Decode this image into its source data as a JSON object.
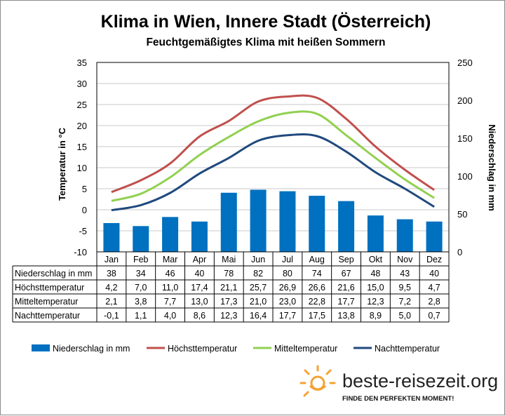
{
  "title": "Klima in Wien, Innere Stadt (Österreich)",
  "subtitle": "Feuchtgemäßigtes  Klima mit heißen  Sommern",
  "brand": {
    "name": "beste-reisezeit.org",
    "slogan": "FINDE DEN PERFEKTEN MOMENT!"
  },
  "colors": {
    "precip": "#0070c0",
    "high": "#c0504d",
    "mean": "#92d050",
    "low": "#1f497d"
  },
  "chart_data": {
    "type": "bar+line",
    "categories": [
      "Jan",
      "Feb",
      "Mar",
      "Apr",
      "Mai",
      "Jun",
      "Jul",
      "Aug",
      "Sep",
      "Okt",
      "Nov",
      "Dez"
    ],
    "ylabel": "Temperatur in °C",
    "y2label": "Niederschlag in mm",
    "ylim": [
      -10,
      35
    ],
    "yticks": [
      "35",
      "30",
      "25",
      "20",
      "15",
      "10",
      "5",
      "0",
      "-5",
      "-10"
    ],
    "y2lim": [
      0,
      250
    ],
    "y2ticks": [
      "250",
      "200",
      "150",
      "100",
      "50",
      "0"
    ],
    "grid": "horizontal",
    "legend_position": "bottom",
    "series": [
      {
        "name": "Niederschlag in mm",
        "kind": "bar",
        "axis": "right",
        "values": [
          38,
          34,
          46,
          40,
          78,
          82,
          80,
          74,
          67,
          48,
          43,
          40
        ],
        "display": [
          "38",
          "34",
          "46",
          "40",
          "78",
          "82",
          "80",
          "74",
          "67",
          "48",
          "43",
          "40"
        ]
      },
      {
        "name": "Höchsttemperatur",
        "kind": "line",
        "axis": "left",
        "values": [
          4.2,
          7.0,
          11.0,
          17.4,
          21.1,
          25.7,
          26.9,
          26.6,
          21.6,
          15.0,
          9.5,
          4.7
        ],
        "display": [
          "4,2",
          "7,0",
          "11,0",
          "17,4",
          "21,1",
          "25,7",
          "26,9",
          "26,6",
          "21,6",
          "15,0",
          "9,5",
          "4,7"
        ]
      },
      {
        "name": "Mitteltemperatur",
        "kind": "line",
        "axis": "left",
        "values": [
          2.1,
          3.8,
          7.7,
          13.0,
          17.3,
          21.0,
          23.0,
          22.8,
          17.7,
          12.3,
          7.2,
          2.8
        ],
        "display": [
          "2,1",
          "3,8",
          "7,7",
          "13,0",
          "17,3",
          "21,0",
          "23,0",
          "22,8",
          "17,7",
          "12,3",
          "7,2",
          "2,8"
        ]
      },
      {
        "name": "Nachttemperatur",
        "kind": "line",
        "axis": "left",
        "values": [
          -0.1,
          1.1,
          4.0,
          8.6,
          12.3,
          16.4,
          17.7,
          17.5,
          13.8,
          8.9,
          5.0,
          0.7
        ],
        "display": [
          "-0,1",
          "1,1",
          "4,0",
          "8,6",
          "12,3",
          "16,4",
          "17,7",
          "17,5",
          "13,8",
          "8,9",
          "5,0",
          "0,7"
        ]
      }
    ]
  }
}
